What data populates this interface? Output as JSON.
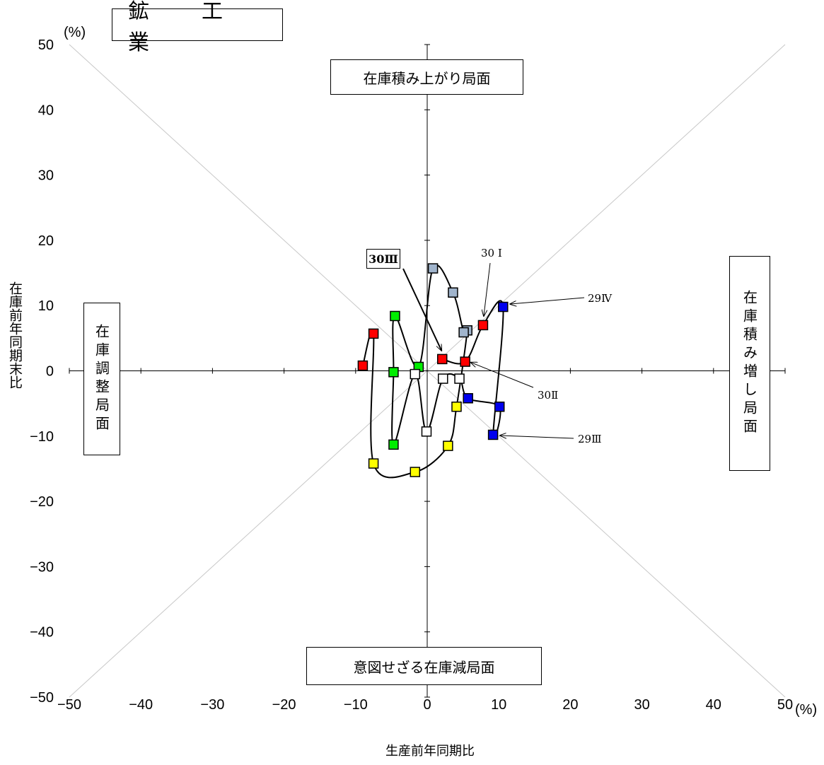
{
  "title": "鉱　工　業",
  "phase_labels": {
    "top": "在庫積み上がり局面",
    "right": "在庫積み増し局面",
    "bottom": "意図せざる在庫減局面",
    "left": "在庫調整局面"
  },
  "chart_data": {
    "type": "scatter",
    "xlabel": "生産前年同期比",
    "ylabel": "在庫前年同期末比",
    "x_unit": "(%)",
    "y_unit": "(%)",
    "xlim": [
      -50,
      50
    ],
    "ylim": [
      -50,
      50
    ],
    "x_ticks": [
      "−50",
      "−40",
      "−30",
      "−20",
      "−10",
      "0",
      "10",
      "20",
      "30",
      "40",
      "50"
    ],
    "y_ticks": [
      "50",
      "40",
      "30",
      "20",
      "10",
      "0",
      "−10",
      "−20",
      "−30",
      "−40",
      "−50"
    ],
    "diagonals": true,
    "points": [
      {
        "x": -9.0,
        "y": 0.8,
        "color": "#ff0000"
      },
      {
        "x": -7.5,
        "y": 5.7,
        "color": "#ff0000"
      },
      {
        "x": -7.5,
        "y": -14.2,
        "color": "#ffff00"
      },
      {
        "x": -1.7,
        "y": -15.5,
        "color": "#ffff00"
      },
      {
        "x": 2.9,
        "y": -11.5,
        "color": "#ffff00"
      },
      {
        "x": 4.1,
        "y": -5.5,
        "color": "#ffff00"
      },
      {
        "x": 5.6,
        "y": 6.2,
        "color": "#a0b4cc"
      },
      {
        "x": 5.1,
        "y": 5.9,
        "color": "#a0b4cc"
      },
      {
        "x": 3.6,
        "y": 12.0,
        "color": "#a0b4cc"
      },
      {
        "x": 0.8,
        "y": 15.7,
        "color": "#a0b4cc"
      },
      {
        "x": -1.2,
        "y": 0.6,
        "color": "#00ee00"
      },
      {
        "x": -4.5,
        "y": 8.4,
        "color": "#00ee00"
      },
      {
        "x": -4.7,
        "y": -0.2,
        "color": "#00ee00"
      },
      {
        "x": -4.7,
        "y": -11.3,
        "color": "#00ee00"
      },
      {
        "x": -1.7,
        "y": -0.5,
        "color": "#ffffff"
      },
      {
        "x": -0.1,
        "y": -9.3,
        "color": "#ffffff"
      },
      {
        "x": 2.2,
        "y": -1.2,
        "color": "#ffffff"
      },
      {
        "x": 4.5,
        "y": -1.2,
        "color": "#ffffff"
      },
      {
        "x": 5.7,
        "y": -4.2,
        "color": "#0000ee"
      },
      {
        "x": 10.1,
        "y": -5.5,
        "color": "#0000ee"
      },
      {
        "x": 9.2,
        "y": -9.8,
        "color": "#0000ee"
      },
      {
        "x": 10.6,
        "y": 9.8,
        "color": "#0000ee"
      },
      {
        "x": 7.8,
        "y": 7.0,
        "color": "#ff0000"
      },
      {
        "x": 5.3,
        "y": 1.4,
        "color": "#ff0000"
      },
      {
        "x": 2.1,
        "y": 1.8,
        "color": "#ff0000"
      }
    ],
    "annotations": [
      {
        "text": "29Ⅳ",
        "x": 10.6,
        "y": 9.8
      },
      {
        "text": "30 Ⅰ",
        "x": 7.8,
        "y": 7.0
      },
      {
        "text": "30Ⅱ",
        "x": 5.3,
        "y": 1.4
      },
      {
        "text": "29Ⅲ",
        "x": 9.2,
        "y": -9.8
      }
    ],
    "current_label": "30Ⅲ"
  }
}
